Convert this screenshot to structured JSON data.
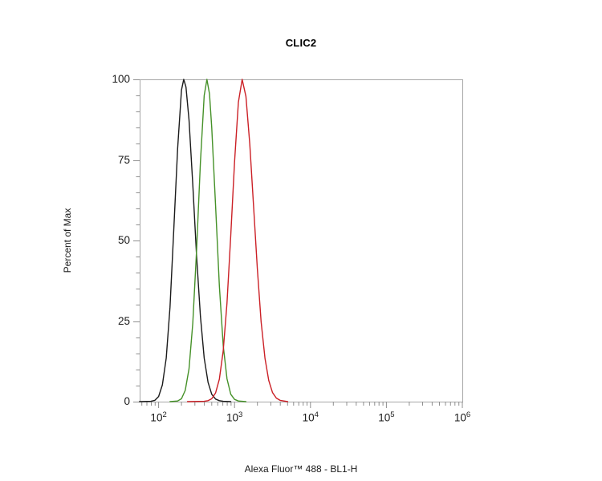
{
  "chart_data": {
    "type": "line",
    "subtype": "flow-cytometry-histogram-overlay",
    "title": "CLIC2",
    "xlabel": "Alexa Fluor™ 488 - BL1-H",
    "ylabel": "Percent of Max",
    "x_scale": "log",
    "x_log_range": [
      1.75,
      6
    ],
    "ylim": [
      0,
      100
    ],
    "y_major_ticks": [
      100,
      75,
      50,
      25,
      0
    ],
    "y_minor_step": 5,
    "x_decades": [
      2,
      3,
      4,
      5,
      6
    ],
    "grid": false,
    "legend": "none",
    "frame_color": "#a6a6a6",
    "tick_color": "#8f8f8f",
    "label_color": "#1a1a1a",
    "series": [
      {
        "name": "black",
        "color": "#1a1a1a",
        "peak_x": 214,
        "peak_y": 100,
        "x": [
          56,
          79,
          89,
          100,
          112,
          126,
          141,
          158,
          178,
          200,
          214,
          229,
          251,
          282,
          316,
          355,
          398,
          447,
          501,
          562,
          631,
          708,
          891
        ],
        "y": [
          0,
          0.1,
          0.4,
          1.6,
          5.2,
          13.5,
          29.3,
          52.8,
          78.5,
          96.7,
          100,
          97.6,
          87.4,
          67.3,
          45.2,
          26.5,
          13.5,
          6.0,
          2.3,
          0.8,
          0.3,
          0.1,
          0
        ]
      },
      {
        "name": "green",
        "color": "#459128",
        "peak_x": 432,
        "peak_y": 100,
        "x": [
          141,
          178,
          200,
          224,
          251,
          282,
          316,
          355,
          398,
          432,
          468,
          501,
          562,
          631,
          708,
          794,
          891,
          1000,
          1122,
          1413
        ],
        "y": [
          0,
          0.2,
          0.9,
          3.5,
          10.2,
          24.4,
          47.0,
          74.3,
          95.0,
          100,
          95.5,
          85.0,
          60.7,
          35.9,
          17.4,
          7.1,
          2.3,
          0.7,
          0.2,
          0
        ]
      },
      {
        "name": "red",
        "color": "#cb2026",
        "peak_x": 1259,
        "peak_y": 100,
        "x": [
          240,
          398,
          447,
          501,
          562,
          631,
          708,
          794,
          891,
          1000,
          1122,
          1259,
          1413,
          1585,
          1778,
          1995,
          2239,
          2512,
          2818,
          3162,
          3548,
          3981,
          5012
        ],
        "y": [
          0,
          0.1,
          0.3,
          0.9,
          2.7,
          7.0,
          15.8,
          30.6,
          51.6,
          74.3,
          92.9,
          100,
          94.7,
          79.9,
          60.7,
          41.3,
          24.8,
          13.5,
          6.6,
          2.8,
          1.1,
          0.4,
          0
        ]
      }
    ]
  }
}
